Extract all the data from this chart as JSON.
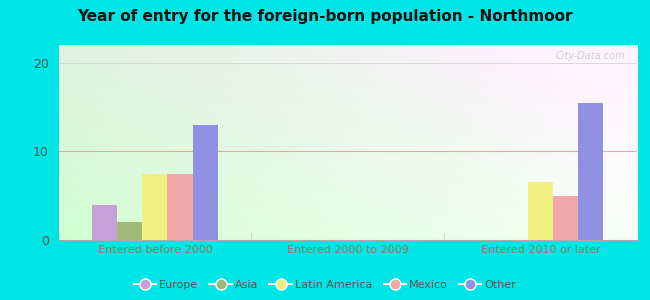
{
  "title": "Year of entry for the foreign-born population - Northmoor",
  "categories": [
    "Entered before 2000",
    "Entered 2000 to 2009",
    "Entered 2010 or later"
  ],
  "series": {
    "Europe": [
      4,
      0,
      0
    ],
    "Asia": [
      2,
      0,
      0
    ],
    "Latin America": [
      7.5,
      0,
      6.5
    ],
    "Mexico": [
      7.5,
      0,
      5
    ],
    "Other": [
      13,
      0,
      15.5
    ]
  },
  "colors": {
    "Europe": "#c8a0d8",
    "Asia": "#a0b878",
    "Latin America": "#f0f080",
    "Mexico": "#f0a8a8",
    "Other": "#9090e0"
  },
  "ylim": [
    0,
    22
  ],
  "yticks": [
    0,
    10,
    20
  ],
  "outer_background": "#00e5e5",
  "watermark": "City-Data.com",
  "legend_order": [
    "Europe",
    "Asia",
    "Latin America",
    "Mexico",
    "Other"
  ]
}
